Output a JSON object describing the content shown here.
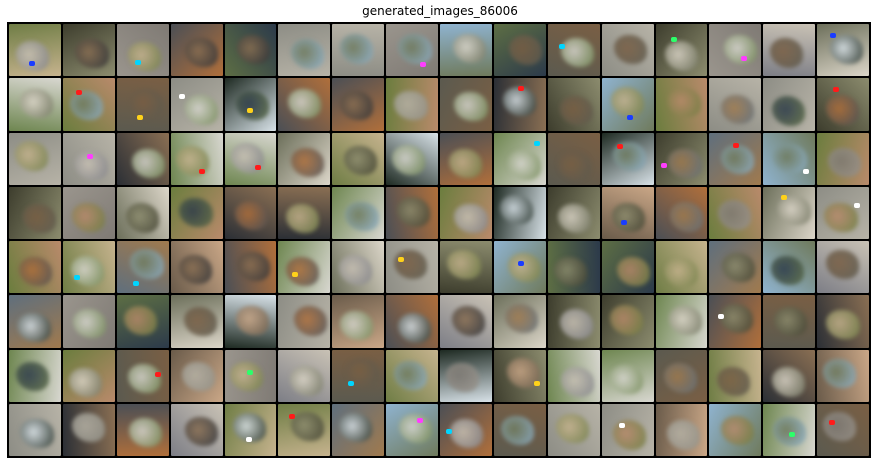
{
  "title": "generated_images_86006",
  "grid": {
    "rows": 8,
    "cols": 16,
    "palette": [
      [
        "#5b5a4f",
        "#7a5f44"
      ],
      [
        "#6f7d45",
        "#c6b38e"
      ],
      [
        "#8d8d85",
        "#b7b3a7"
      ],
      [
        "#1e2a22",
        "#d8e2e8"
      ],
      [
        "#2b2f35",
        "#8a6f53"
      ],
      [
        "#3d3d2d",
        "#8c8c6e"
      ],
      [
        "#5f6f7d",
        "#a07a4e"
      ],
      [
        "#6a5b4a",
        "#caa787"
      ],
      [
        "#9a958d",
        "#7f7a74"
      ],
      [
        "#8fb3cf",
        "#6f7a5c"
      ],
      [
        "#4b4f55",
        "#b06f3b"
      ],
      [
        "#6e8650",
        "#d8d7d0"
      ],
      [
        "#7d7e86",
        "#c9c2b5"
      ],
      [
        "#5d6e44",
        "#2c3a4a"
      ],
      [
        "#6b7d3e",
        "#b98a6b"
      ],
      [
        "#6c6f5a",
        "#dcd6c9"
      ]
    ],
    "accents": [
      "#ff1a1a",
      "#ffffff",
      "#1a3cff",
      "#ffd21a",
      "#2cff6a",
      "#ff3dff",
      "#00d5ff"
    ]
  }
}
